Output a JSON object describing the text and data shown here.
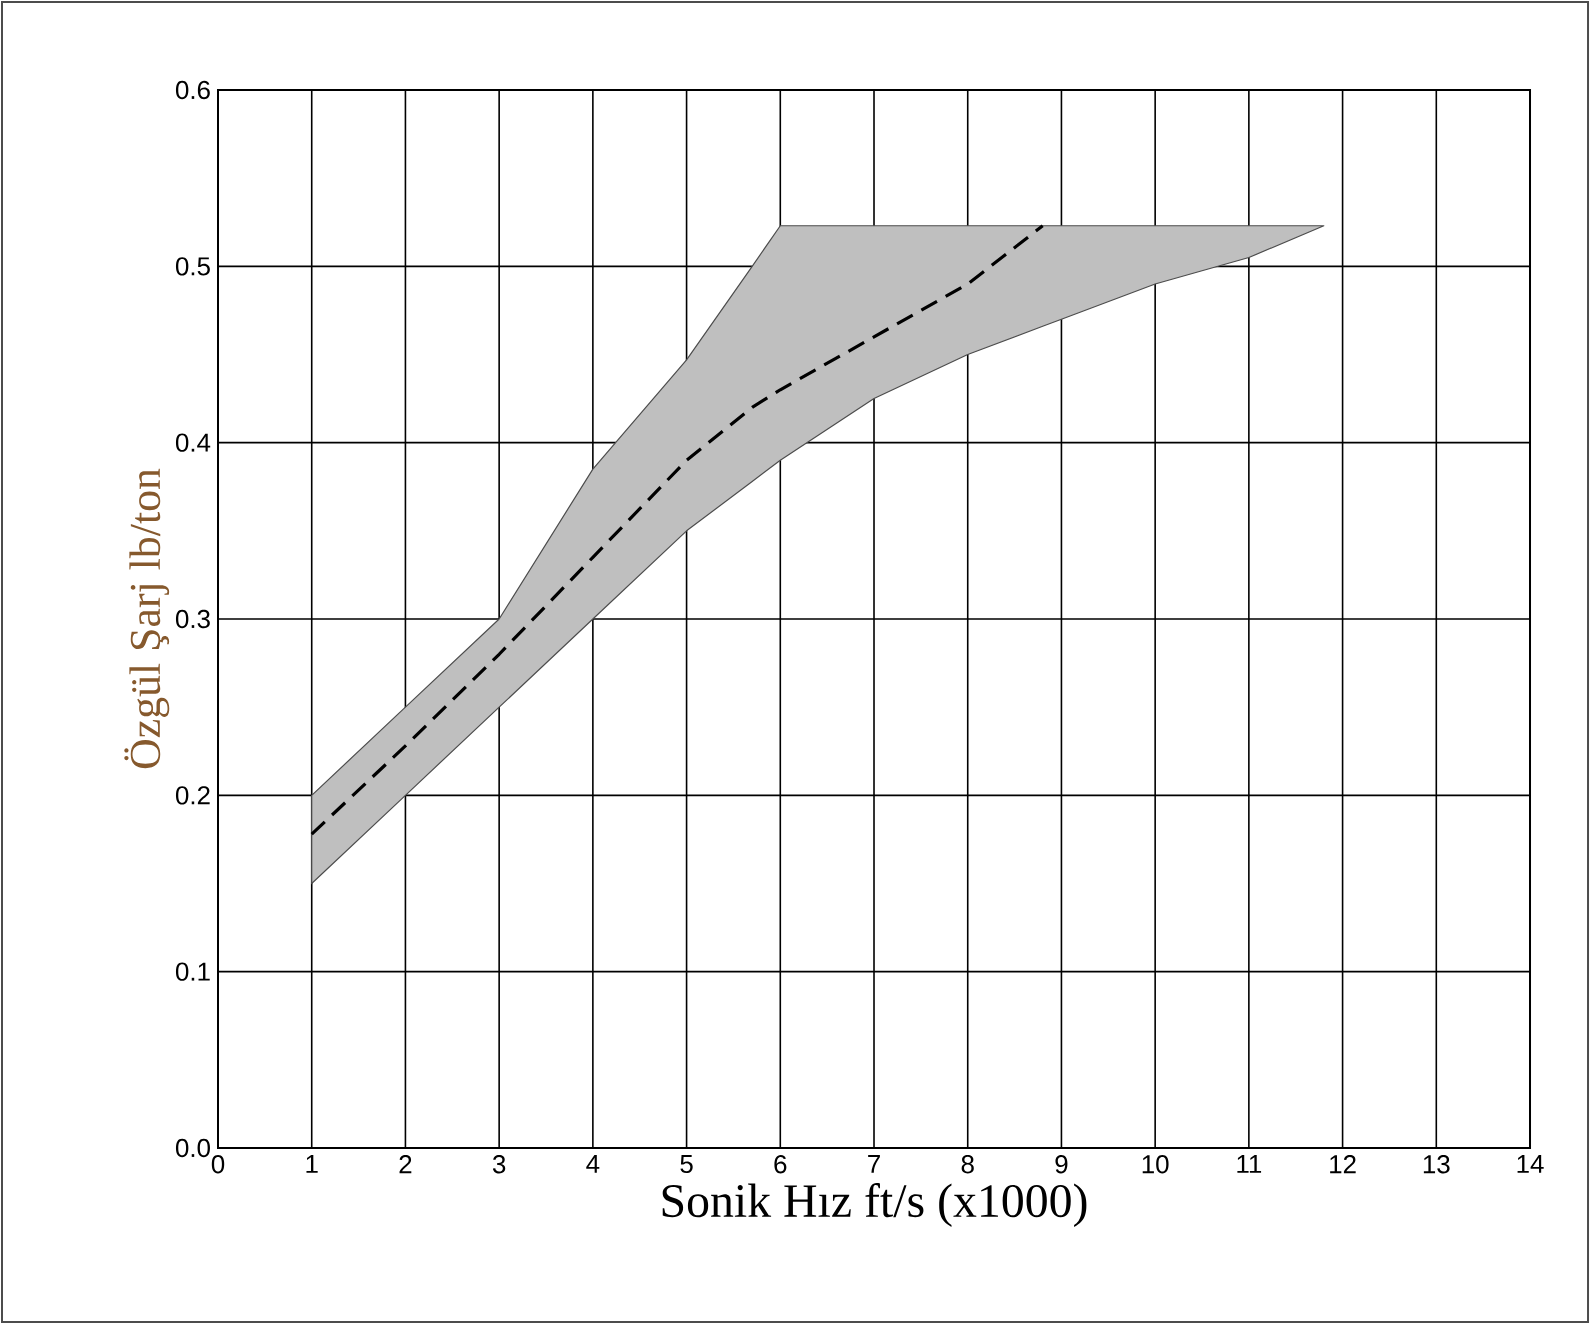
{
  "chart_data": {
    "type": "line",
    "xlabel": "Sonik Hız ft/s (x1000)",
    "ylabel": "Özgül Şarj lb/ton",
    "series": [
      {
        "color": "#000000",
        "line_style": "dashed",
        "x": [
          1,
          2,
          3,
          4,
          5,
          5.7,
          6,
          7,
          8,
          8.8,
          9,
          10,
          11,
          11.8
        ],
        "values": [
          0.178,
          0.228,
          0.28,
          0.335,
          0.39,
          0.42,
          0.43,
          0.46,
          0.49,
          0.523,
          null,
          null,
          null,
          null
        ],
        "lower": [
          0.15,
          0.2,
          0.25,
          0.3,
          0.35,
          0.378,
          0.39,
          0.425,
          0.45,
          0.466,
          0.47,
          0.49,
          0.505,
          0.523
        ],
        "upper": [
          0.2,
          0.25,
          0.3,
          0.385,
          0.447,
          0.5,
          0.523,
          0.523,
          0.523,
          0.523,
          0.523,
          0.523,
          0.523,
          0.523
        ]
      }
    ],
    "xlim": [
      0,
      14
    ],
    "ylim": [
      0,
      0.6
    ],
    "xticks": [
      0,
      1,
      2,
      3,
      4,
      5,
      6,
      7,
      8,
      9,
      10,
      11,
      12,
      13,
      14
    ],
    "yticks": [
      {
        "value": 0,
        "label": "0.0"
      },
      {
        "value": 0.1,
        "label": "0.1"
      },
      {
        "value": 0.2,
        "label": "0.2"
      },
      {
        "value": 0.3,
        "label": "0.3"
      },
      {
        "value": 0.4,
        "label": "0.4"
      },
      {
        "value": 0.5,
        "label": "0.5"
      },
      {
        "value": 0.6,
        "label": "0.6"
      }
    ],
    "grid": true
  }
}
